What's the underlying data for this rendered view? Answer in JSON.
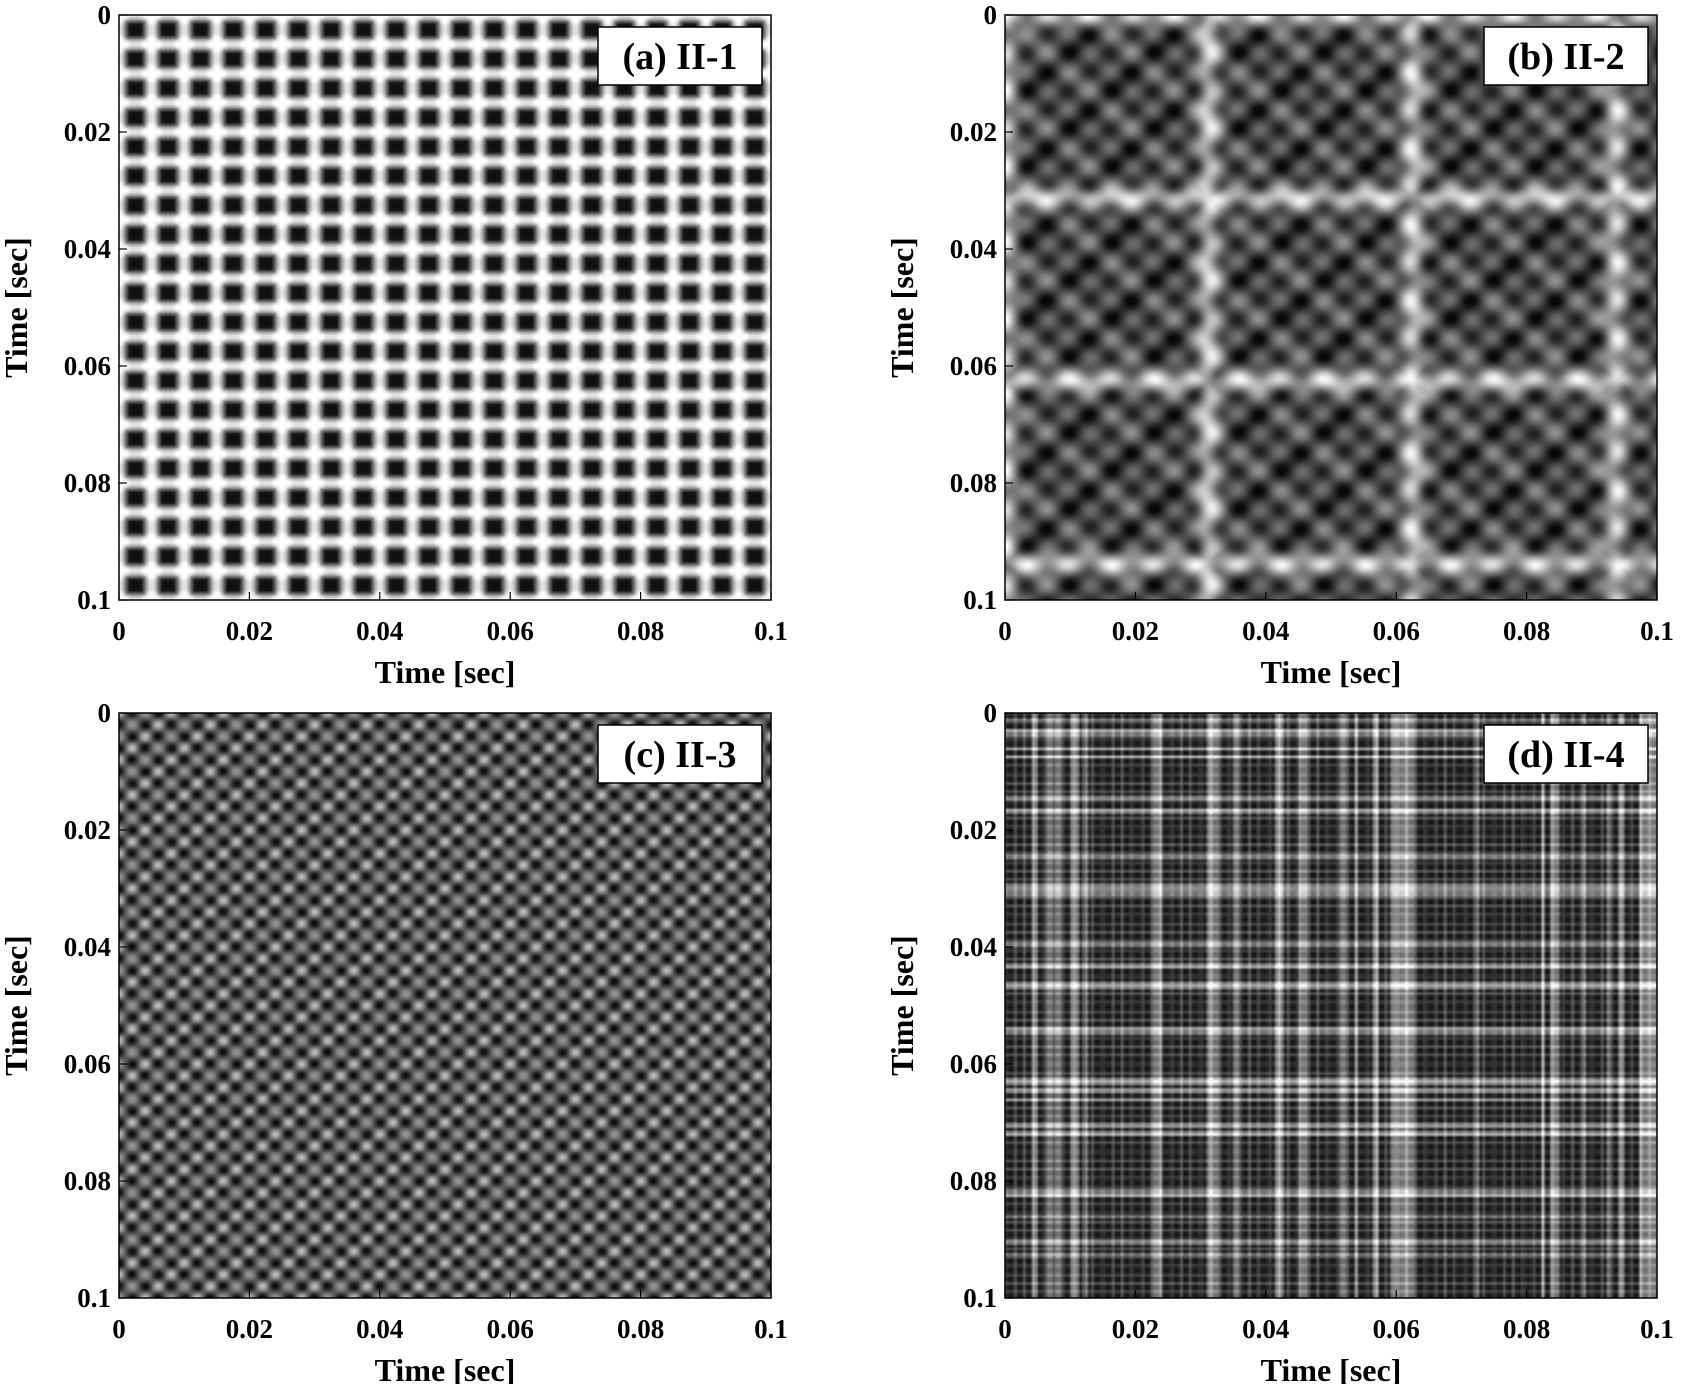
{
  "chart_data": [
    {
      "type": "heatmap",
      "panel_label": "(a) II-1",
      "xlabel": "Time [sec]",
      "ylabel": "Time [sec]",
      "xlim": [
        0,
        0.1
      ],
      "ylim": [
        0,
        0.1
      ],
      "y_inverted": true,
      "x_ticks": [
        "0",
        "0.02",
        "0.04",
        "0.06",
        "0.08",
        "0.1"
      ],
      "y_ticks": [
        "0",
        "0.02",
        "0.04",
        "0.06",
        "0.08",
        "0.1"
      ],
      "colormap": "grayscale",
      "pattern": {
        "kind": "lattice",
        "period_sec": 0.005
      }
    },
    {
      "type": "heatmap",
      "panel_label": "(b) II-2",
      "xlabel": "Time [sec]",
      "ylabel": "Time [sec]",
      "xlim": [
        0,
        0.1
      ],
      "ylim": [
        0,
        0.1
      ],
      "y_inverted": true,
      "x_ticks": [
        "0",
        "0.02",
        "0.04",
        "0.06",
        "0.08",
        "0.1"
      ],
      "y_ticks": [
        "0",
        "0.02",
        "0.04",
        "0.06",
        "0.08",
        "0.1"
      ],
      "colormap": "grayscale",
      "pattern": {
        "kind": "blobs",
        "period_sec": 0.0065
      }
    },
    {
      "type": "heatmap",
      "panel_label": "(c) II-3",
      "xlabel": "Time [sec]",
      "ylabel": "Time [sec]",
      "xlim": [
        0,
        0.1
      ],
      "ylim": [
        0,
        0.1
      ],
      "y_inverted": true,
      "x_ticks": [
        "0",
        "0.02",
        "0.04",
        "0.06",
        "0.08",
        "0.1"
      ],
      "y_ticks": [
        "0",
        "0.02",
        "0.04",
        "0.06",
        "0.08",
        "0.1"
      ],
      "colormap": "grayscale",
      "pattern": {
        "kind": "checker",
        "period_sec": 0.004
      }
    },
    {
      "type": "heatmap",
      "panel_label": "(d) II-4",
      "xlabel": "Time [sec]",
      "ylabel": "Time [sec]",
      "xlim": [
        0,
        0.1
      ],
      "ylim": [
        0,
        0.1
      ],
      "y_inverted": true,
      "x_ticks": [
        "0",
        "0.02",
        "0.04",
        "0.06",
        "0.08",
        "0.1"
      ],
      "y_ticks": [
        "0",
        "0.02",
        "0.04",
        "0.06",
        "0.08",
        "0.1"
      ],
      "colormap": "grayscale",
      "pattern": {
        "kind": "fine",
        "period_sec": 0.0015
      }
    }
  ]
}
